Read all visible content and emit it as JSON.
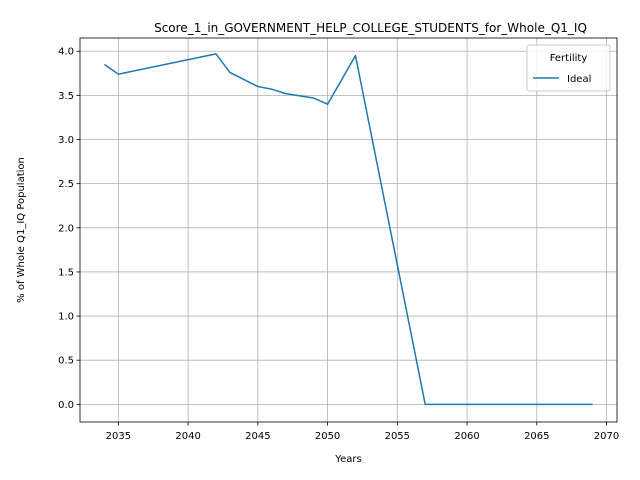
{
  "chart_data": {
    "type": "line",
    "title": "Score_1_in_GOVERNMENT_HELP_COLLEGE_STUDENTS_for_Whole_Q1_IQ",
    "xlabel": "Years",
    "ylabel": "% of Whole Q1_IQ Population",
    "xlim": [
      2032.25,
      2070.75
    ],
    "ylim": [
      -0.2,
      4.15
    ],
    "xticks": [
      2035,
      2040,
      2045,
      2050,
      2055,
      2060,
      2065,
      2070
    ],
    "yticks": [
      0.0,
      0.5,
      1.0,
      1.5,
      2.0,
      2.5,
      3.0,
      3.5,
      4.0
    ],
    "xtick_labels": [
      "2035",
      "2040",
      "2045",
      "2050",
      "2055",
      "2060",
      "2065",
      "2070"
    ],
    "ytick_labels": [
      "0.0",
      "0.5",
      "1.0",
      "1.5",
      "2.0",
      "2.5",
      "3.0",
      "3.5",
      "4.0"
    ],
    "grid": true,
    "legend": {
      "title": "Fertility",
      "placement": "top-right"
    },
    "series": [
      {
        "name": "Ideal",
        "color": "#1f77b4",
        "x": [
          2034,
          2035,
          2042,
          2043,
          2045,
          2046,
          2047,
          2049,
          2050,
          2052,
          2057,
          2058,
          2069
        ],
        "y": [
          3.85,
          3.74,
          3.97,
          3.76,
          3.6,
          3.57,
          3.52,
          3.47,
          3.4,
          3.95,
          0.0,
          0.0,
          0.0
        ]
      }
    ]
  }
}
